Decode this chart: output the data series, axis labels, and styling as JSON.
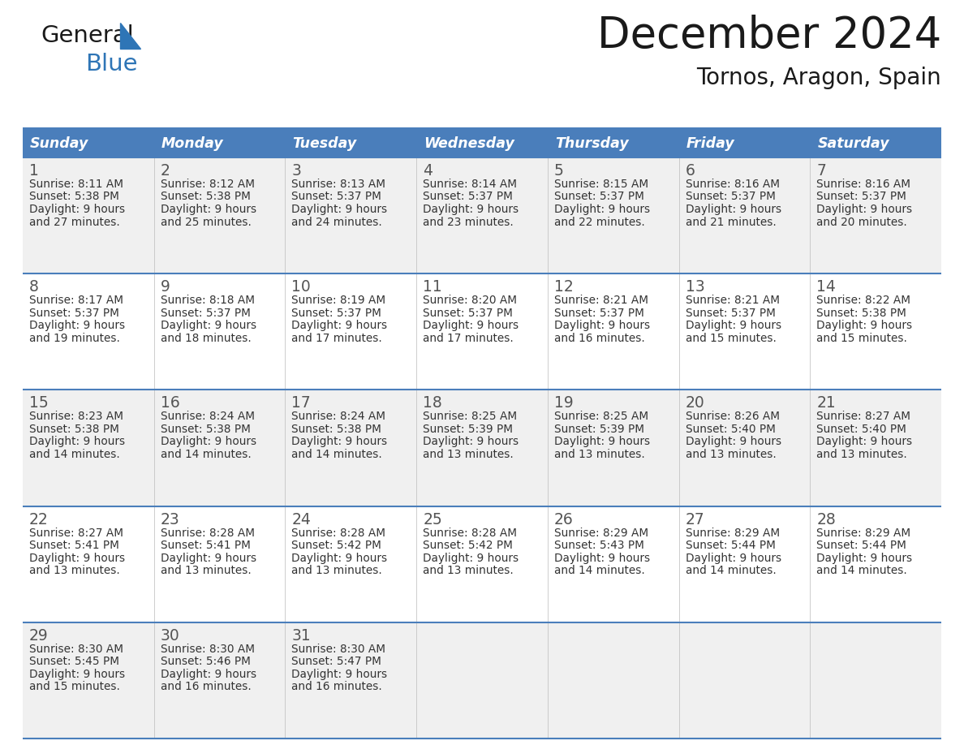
{
  "title": "December 2024",
  "subtitle": "Tornos, Aragon, Spain",
  "header_bg_color": "#4A7EBB",
  "header_text_color": "#FFFFFF",
  "days_of_week": [
    "Sunday",
    "Monday",
    "Tuesday",
    "Wednesday",
    "Thursday",
    "Friday",
    "Saturday"
  ],
  "row_bg_colors": [
    "#F0F0F0",
    "#FFFFFF"
  ],
  "cell_border_color": "#4A7EBB",
  "day_number_color": "#555555",
  "info_text_color": "#333333",
  "title_color": "#1a1a1a",
  "subtitle_color": "#1a1a1a",
  "logo_color1": "#1a1a1a",
  "logo_color2": "#2E75B6",
  "logo_triangle_color": "#2E75B6",
  "weeks": [
    [
      {
        "day": 1,
        "sunrise": "8:11 AM",
        "sunset": "5:38 PM",
        "daylight_hours": 9,
        "daylight_minutes": 27
      },
      {
        "day": 2,
        "sunrise": "8:12 AM",
        "sunset": "5:38 PM",
        "daylight_hours": 9,
        "daylight_minutes": 25
      },
      {
        "day": 3,
        "sunrise": "8:13 AM",
        "sunset": "5:37 PM",
        "daylight_hours": 9,
        "daylight_minutes": 24
      },
      {
        "day": 4,
        "sunrise": "8:14 AM",
        "sunset": "5:37 PM",
        "daylight_hours": 9,
        "daylight_minutes": 23
      },
      {
        "day": 5,
        "sunrise": "8:15 AM",
        "sunset": "5:37 PM",
        "daylight_hours": 9,
        "daylight_minutes": 22
      },
      {
        "day": 6,
        "sunrise": "8:16 AM",
        "sunset": "5:37 PM",
        "daylight_hours": 9,
        "daylight_minutes": 21
      },
      {
        "day": 7,
        "sunrise": "8:16 AM",
        "sunset": "5:37 PM",
        "daylight_hours": 9,
        "daylight_minutes": 20
      }
    ],
    [
      {
        "day": 8,
        "sunrise": "8:17 AM",
        "sunset": "5:37 PM",
        "daylight_hours": 9,
        "daylight_minutes": 19
      },
      {
        "day": 9,
        "sunrise": "8:18 AM",
        "sunset": "5:37 PM",
        "daylight_hours": 9,
        "daylight_minutes": 18
      },
      {
        "day": 10,
        "sunrise": "8:19 AM",
        "sunset": "5:37 PM",
        "daylight_hours": 9,
        "daylight_minutes": 17
      },
      {
        "day": 11,
        "sunrise": "8:20 AM",
        "sunset": "5:37 PM",
        "daylight_hours": 9,
        "daylight_minutes": 17
      },
      {
        "day": 12,
        "sunrise": "8:21 AM",
        "sunset": "5:37 PM",
        "daylight_hours": 9,
        "daylight_minutes": 16
      },
      {
        "day": 13,
        "sunrise": "8:21 AM",
        "sunset": "5:37 PM",
        "daylight_hours": 9,
        "daylight_minutes": 15
      },
      {
        "day": 14,
        "sunrise": "8:22 AM",
        "sunset": "5:38 PM",
        "daylight_hours": 9,
        "daylight_minutes": 15
      }
    ],
    [
      {
        "day": 15,
        "sunrise": "8:23 AM",
        "sunset": "5:38 PM",
        "daylight_hours": 9,
        "daylight_minutes": 14
      },
      {
        "day": 16,
        "sunrise": "8:24 AM",
        "sunset": "5:38 PM",
        "daylight_hours": 9,
        "daylight_minutes": 14
      },
      {
        "day": 17,
        "sunrise": "8:24 AM",
        "sunset": "5:38 PM",
        "daylight_hours": 9,
        "daylight_minutes": 14
      },
      {
        "day": 18,
        "sunrise": "8:25 AM",
        "sunset": "5:39 PM",
        "daylight_hours": 9,
        "daylight_minutes": 13
      },
      {
        "day": 19,
        "sunrise": "8:25 AM",
        "sunset": "5:39 PM",
        "daylight_hours": 9,
        "daylight_minutes": 13
      },
      {
        "day": 20,
        "sunrise": "8:26 AM",
        "sunset": "5:40 PM",
        "daylight_hours": 9,
        "daylight_minutes": 13
      },
      {
        "day": 21,
        "sunrise": "8:27 AM",
        "sunset": "5:40 PM",
        "daylight_hours": 9,
        "daylight_minutes": 13
      }
    ],
    [
      {
        "day": 22,
        "sunrise": "8:27 AM",
        "sunset": "5:41 PM",
        "daylight_hours": 9,
        "daylight_minutes": 13
      },
      {
        "day": 23,
        "sunrise": "8:28 AM",
        "sunset": "5:41 PM",
        "daylight_hours": 9,
        "daylight_minutes": 13
      },
      {
        "day": 24,
        "sunrise": "8:28 AM",
        "sunset": "5:42 PM",
        "daylight_hours": 9,
        "daylight_minutes": 13
      },
      {
        "day": 25,
        "sunrise": "8:28 AM",
        "sunset": "5:42 PM",
        "daylight_hours": 9,
        "daylight_minutes": 13
      },
      {
        "day": 26,
        "sunrise": "8:29 AM",
        "sunset": "5:43 PM",
        "daylight_hours": 9,
        "daylight_minutes": 14
      },
      {
        "day": 27,
        "sunrise": "8:29 AM",
        "sunset": "5:44 PM",
        "daylight_hours": 9,
        "daylight_minutes": 14
      },
      {
        "day": 28,
        "sunrise": "8:29 AM",
        "sunset": "5:44 PM",
        "daylight_hours": 9,
        "daylight_minutes": 14
      }
    ],
    [
      {
        "day": 29,
        "sunrise": "8:30 AM",
        "sunset": "5:45 PM",
        "daylight_hours": 9,
        "daylight_minutes": 15
      },
      {
        "day": 30,
        "sunrise": "8:30 AM",
        "sunset": "5:46 PM",
        "daylight_hours": 9,
        "daylight_minutes": 16
      },
      {
        "day": 31,
        "sunrise": "8:30 AM",
        "sunset": "5:47 PM",
        "daylight_hours": 9,
        "daylight_minutes": 16
      },
      null,
      null,
      null,
      null
    ]
  ]
}
